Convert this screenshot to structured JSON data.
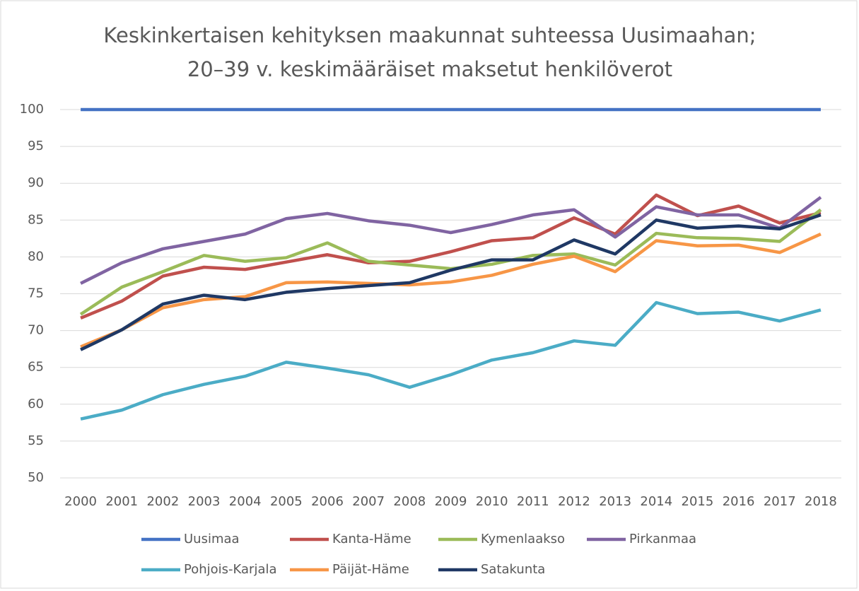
{
  "chart_data": {
    "type": "line",
    "title": [
      "Keskinkertaisen kehityksen maakunnat suhteessa Uusimaahan;",
      "20–39 v. keskimääräiset maksetut henkilöverot"
    ],
    "categories": [
      "2000",
      "2001",
      "2002",
      "2003",
      "2004",
      "2005",
      "2006",
      "2007",
      "2008",
      "2009",
      "2010",
      "2011",
      "2012",
      "2013",
      "2014",
      "2015",
      "2016",
      "2017",
      "2018"
    ],
    "series": [
      {
        "name": "Uusimaa",
        "color": "#4472c4",
        "values": [
          100,
          100,
          100,
          100,
          100,
          100,
          100,
          100,
          100,
          100,
          100,
          100,
          100,
          100,
          100,
          100,
          100,
          100,
          100
        ]
      },
      {
        "name": "Kanta-Häme",
        "color": "#c0504d",
        "values": [
          71.7,
          74.0,
          77.4,
          78.6,
          78.3,
          79.3,
          80.3,
          79.2,
          79.4,
          80.7,
          82.2,
          82.6,
          85.3,
          83.1,
          88.4,
          85.6,
          86.9,
          84.6,
          86.0
        ]
      },
      {
        "name": "Kymenlaakso",
        "color": "#9bbb59",
        "values": [
          72.2,
          75.9,
          78.0,
          80.2,
          79.4,
          79.9,
          81.9,
          79.4,
          78.9,
          78.4,
          79.0,
          80.2,
          80.4,
          78.9,
          83.2,
          82.6,
          82.5,
          82.1,
          86.4
        ]
      },
      {
        "name": "Pirkanmaa",
        "color": "#8064a2",
        "values": [
          76.4,
          79.2,
          81.1,
          82.1,
          83.1,
          85.2,
          85.9,
          84.9,
          84.3,
          83.3,
          84.4,
          85.7,
          86.4,
          82.7,
          86.8,
          85.7,
          85.7,
          83.9,
          88.1
        ]
      },
      {
        "name": "Pohjois-Karjala",
        "color": "#4bacc6",
        "values": [
          58.0,
          59.2,
          61.3,
          62.7,
          63.8,
          65.7,
          64.9,
          64.0,
          62.3,
          64.0,
          66.0,
          67.0,
          68.6,
          68.0,
          73.8,
          72.3,
          72.5,
          71.3,
          72.8
        ]
      },
      {
        "name": "Päijät-Häme",
        "color": "#f79646",
        "values": [
          67.8,
          70.1,
          73.1,
          74.2,
          74.6,
          76.5,
          76.6,
          76.4,
          76.2,
          76.6,
          77.5,
          79.0,
          80.1,
          78.0,
          82.2,
          81.5,
          81.6,
          80.6,
          83.1
        ]
      },
      {
        "name": "Satakunta",
        "color": "#1f3864",
        "values": [
          67.4,
          70.1,
          73.6,
          74.8,
          74.2,
          75.2,
          75.7,
          76.1,
          76.5,
          78.2,
          79.6,
          79.6,
          82.3,
          80.4,
          85.0,
          83.9,
          84.2,
          83.8,
          85.7
        ]
      }
    ],
    "ylim": [
      50,
      100
    ],
    "yticks": [
      50,
      55,
      60,
      65,
      70,
      75,
      80,
      85,
      90,
      95,
      100
    ],
    "grid": true,
    "legend": "bottom"
  }
}
